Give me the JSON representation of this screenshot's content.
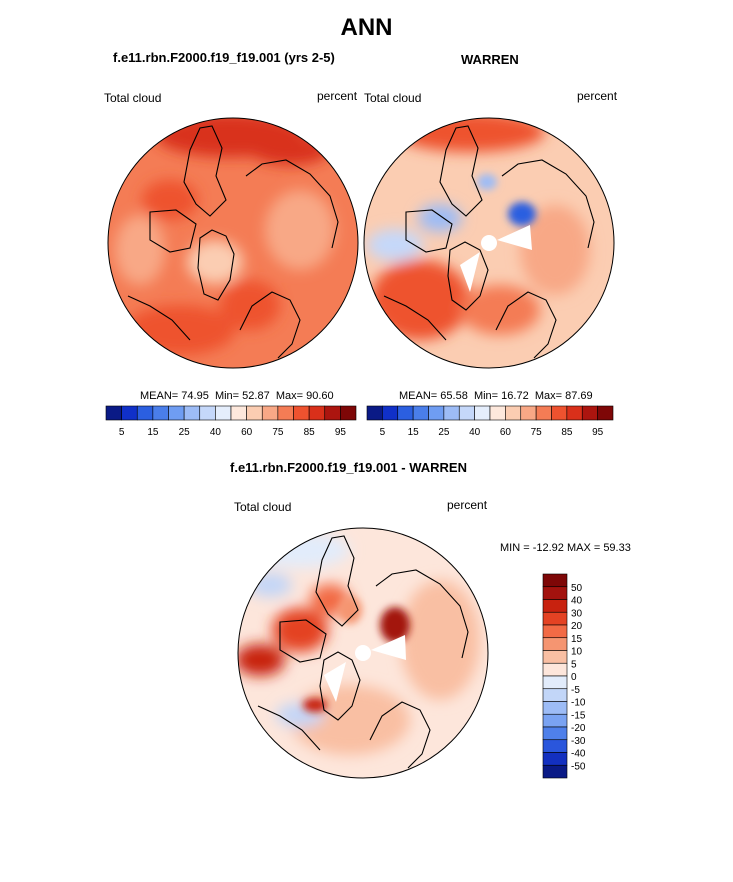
{
  "page": {
    "title": "ANN",
    "panel_left": {
      "case": "f.e11.rbn.F2000.f19_f19.001 (yrs 2-5)",
      "variable": "Total cloud",
      "units": "percent",
      "stats": {
        "mean_label": "MEAN=",
        "mean": "74.95",
        "min_label": "Min=",
        "min": "52.87",
        "max_label": "Max=",
        "max": "90.60"
      }
    },
    "panel_right": {
      "case": "WARREN",
      "variable": "Total cloud",
      "units": "percent",
      "stats": {
        "mean_label": "MEAN=",
        "mean": "65.58",
        "min_label": "Min=",
        "min": "16.72",
        "max_label": "Max=",
        "max": "87.69"
      }
    },
    "panel_diff": {
      "case": "f.e11.rbn.F2000.f19_f19.001 - WARREN",
      "variable": "Total cloud",
      "units": "percent",
      "minmax": "MIN = -12.92 MAX =  59.33"
    }
  },
  "chart_data": [
    {
      "type": "heatmap",
      "projection": "north polar stereographic",
      "field": "total cloud fraction",
      "stats": {
        "mean": 74.95,
        "min": 52.87,
        "max": 90.6
      },
      "colorbar": {
        "orientation": "horizontal",
        "levels": [
          5,
          10,
          15,
          20,
          25,
          30,
          40,
          50,
          60,
          65,
          75,
          80,
          85,
          90,
          95
        ],
        "tick_labels": [
          "5",
          "15",
          "25",
          "40",
          "60",
          "75",
          "85",
          "95"
        ],
        "colors": [
          "#0a1a86",
          "#1030c8",
          "#2b5fe0",
          "#4a7eea",
          "#6f9df2",
          "#9dbcf6",
          "#c5d8fa",
          "#e5eefc",
          "#fde8dc",
          "#fbcdb2",
          "#f8a886",
          "#f47c55",
          "#ee522f",
          "#d9301a",
          "#ac150f",
          "#7e0707"
        ]
      },
      "approx_map_values": {
        "arctic_ocean": 80,
        "north_atlantic": 87,
        "greenland_interior": 65,
        "north_america": 75,
        "eurasia": 80
      }
    },
    {
      "type": "heatmap",
      "projection": "north polar stereographic",
      "field": "total cloud fraction (observations)",
      "stats": {
        "mean": 65.58,
        "min": 16.72,
        "max": 87.69
      },
      "colorbar": {
        "orientation": "horizontal",
        "levels": [
          5,
          10,
          15,
          20,
          25,
          30,
          40,
          50,
          60,
          65,
          75,
          80,
          85,
          90,
          95
        ],
        "tick_labels": [
          "5",
          "15",
          "25",
          "40",
          "60",
          "75",
          "85",
          "95"
        ],
        "colors": [
          "#0a1a86",
          "#1030c8",
          "#2b5fe0",
          "#4a7eea",
          "#6f9df2",
          "#9dbcf6",
          "#c5d8fa",
          "#e5eefc",
          "#fde8dc",
          "#fbcdb2",
          "#f8a886",
          "#f47c55",
          "#ee522f",
          "#d9301a",
          "#ac150f",
          "#7e0707"
        ]
      },
      "approx_map_values": {
        "central_arctic": 45,
        "north_atlantic": 82,
        "greenland_interior": 60,
        "siberia": 65,
        "pacific": 75
      },
      "missing_data": "polar cap and wedges near the pole"
    },
    {
      "type": "heatmap",
      "projection": "north polar stereographic",
      "field": "total cloud difference (model - observations)",
      "stats": {
        "min": -12.92,
        "max": 59.33
      },
      "colorbar": {
        "orientation": "vertical",
        "tick_labels": [
          "50",
          "40",
          "30",
          "20",
          "15",
          "10",
          "5",
          "0",
          "-5",
          "-10",
          "-15",
          "-20",
          "-30",
          "-40",
          "-50"
        ],
        "colors": [
          "#7e0707",
          "#a3120e",
          "#c8220f",
          "#e44223",
          "#f26a45",
          "#f59571",
          "#f9bfa3",
          "#fde6db",
          "#e2ecfb",
          "#c2d6f8",
          "#9dbcf6",
          "#7aa3f2",
          "#4f80ea",
          "#2a56dc",
          "#1330c0",
          "#0a1a86"
        ]
      },
      "approx_map_values": {
        "central_arctic": 35,
        "greenland_sea": 40,
        "north_atlantic": 5,
        "siberia": 15,
        "alaska": 10,
        "pacific": 0
      }
    }
  ]
}
